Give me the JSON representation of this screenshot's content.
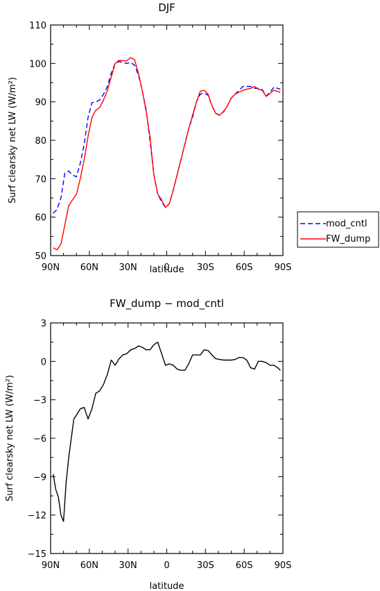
{
  "chart_data": [
    {
      "type": "line",
      "title": "DJF",
      "xlabel": "latitude",
      "ylabel": "Surf clearsky net LW (W/m²)",
      "xlim": [
        90,
        -90
      ],
      "ylim": [
        50,
        110
      ],
      "x_ticks": [
        90,
        60,
        30,
        0,
        -30,
        -60,
        -90
      ],
      "x_tick_labels": [
        "90N",
        "60N",
        "30N",
        "0",
        "30S",
        "60S",
        "90S"
      ],
      "y_ticks": [
        50,
        60,
        70,
        80,
        90,
        100,
        110
      ],
      "y_tick_labels": [
        "50",
        "60",
        "70",
        "80",
        "90",
        "100",
        "110"
      ],
      "legend": {
        "placement": "right"
      },
      "grid": false,
      "series": [
        {
          "name": "mod_cntl",
          "color": "#0000ff",
          "dash": "dashed",
          "x": [
            88,
            85,
            82,
            79,
            76,
            73,
            70,
            67,
            64,
            61,
            58,
            55,
            52,
            49,
            46,
            43,
            40,
            37,
            34,
            31,
            28,
            25,
            22,
            19,
            16,
            13,
            10,
            7,
            4,
            1,
            -2,
            -5,
            -8,
            -11,
            -14,
            -17,
            -20,
            -23,
            -26,
            -29,
            -32,
            -35,
            -38,
            -41,
            -44,
            -47,
            -50,
            -53,
            -56,
            -59,
            -62,
            -65,
            -68,
            -71,
            -74,
            -77,
            -80,
            -83,
            -86,
            -88
          ],
          "y": [
            61,
            62,
            65,
            71.5,
            72,
            71,
            70.5,
            74,
            79,
            86,
            89.8,
            90,
            90.5,
            92,
            94,
            97.5,
            100,
            100.5,
            100.2,
            100,
            100.3,
            99.5,
            97,
            93,
            88,
            80,
            71,
            66,
            64,
            62.5,
            63.5,
            67,
            71,
            75,
            79,
            83,
            86,
            90,
            92,
            92.3,
            91.7,
            89,
            87,
            86.5,
            87.5,
            89,
            91,
            92,
            93,
            94,
            94,
            94,
            93.5,
            93.5,
            93.2,
            91.5,
            92.5,
            93.8,
            93.5,
            93.3
          ]
        },
        {
          "name": "FW_dump",
          "color": "#ff0000",
          "dash": "solid",
          "x": [
            88,
            85,
            82,
            79,
            76,
            73,
            70,
            67,
            64,
            61,
            58,
            55,
            52,
            49,
            46,
            43,
            40,
            37,
            34,
            31,
            28,
            25,
            22,
            19,
            16,
            13,
            10,
            7,
            4,
            1,
            -2,
            -5,
            -8,
            -11,
            -14,
            -17,
            -20,
            -23,
            -26,
            -29,
            -32,
            -35,
            -38,
            -41,
            -44,
            -47,
            -50,
            -53,
            -56,
            -59,
            -62,
            -65,
            -68,
            -71,
            -74,
            -77,
            -80,
            -83,
            -86,
            -88
          ],
          "y": [
            52,
            51.5,
            53,
            58,
            63,
            64.5,
            66,
            70,
            75,
            81,
            86,
            87.8,
            88.5,
            90.5,
            93,
            96.5,
            100,
            100.8,
            100.7,
            100.7,
            101.5,
            101,
            97.5,
            93,
            87.5,
            81,
            71,
            66,
            64.5,
            62.5,
            63.5,
            67,
            71,
            75,
            79,
            83,
            86.5,
            90,
            92.8,
            93,
            92,
            89,
            87,
            86.6,
            87.4,
            89,
            91,
            92,
            92.5,
            93,
            93.3,
            93.5,
            94,
            93.3,
            93,
            91.4,
            92.2,
            93,
            92.7,
            92.5
          ]
        }
      ]
    },
    {
      "type": "line",
      "title": "FW_dump − mod_cntl",
      "xlabel": "latitude",
      "ylabel": "Surf clearsky net LW (W/m²)",
      "xlim": [
        90,
        -90
      ],
      "ylim": [
        -15,
        3
      ],
      "x_ticks": [
        90,
        60,
        30,
        0,
        -30,
        -60,
        -90
      ],
      "x_tick_labels": [
        "90N",
        "60N",
        "30N",
        "0",
        "30S",
        "60S",
        "90S"
      ],
      "y_ticks": [
        -15,
        -12,
        -9,
        -6,
        -3,
        0,
        3
      ],
      "y_tick_labels": [
        "−15",
        "−12",
        "−9",
        "−6",
        "−3",
        "0",
        "3"
      ],
      "grid": false,
      "series": [
        {
          "color": "#000000",
          "dash": "solid",
          "x": [
            88,
            86,
            84,
            82,
            80,
            78,
            76,
            74,
            72,
            70,
            67,
            64,
            61,
            58,
            55,
            52,
            49,
            46,
            43,
            40,
            37,
            34,
            31,
            28,
            25,
            22,
            19,
            16,
            13,
            10,
            7,
            4,
            1,
            -2,
            -5,
            -8,
            -11,
            -14,
            -17,
            -20,
            -23,
            -26,
            -29,
            -32,
            -35,
            -38,
            -41,
            -44,
            -47,
            -50,
            -53,
            -56,
            -59,
            -62,
            -65,
            -68,
            -71,
            -74,
            -77,
            -80,
            -83,
            -86,
            -88
          ],
          "y": [
            -8.8,
            -10,
            -10.6,
            -12,
            -12.5,
            -9.5,
            -7.5,
            -6,
            -4.5,
            -4.2,
            -3.7,
            -3.6,
            -4.5,
            -3.7,
            -2.5,
            -2.3,
            -1.8,
            -1,
            0.1,
            -0.3,
            0.2,
            0.5,
            0.6,
            0.9,
            1,
            1.2,
            1.1,
            0.9,
            0.9,
            1.3,
            1.5,
            0.6,
            -0.3,
            -0.2,
            -0.3,
            -0.6,
            -0.7,
            -0.7,
            -0.2,
            0.5,
            0.5,
            0.5,
            0.9,
            0.85,
            0.5,
            0.2,
            0.15,
            0.1,
            0.1,
            0.1,
            0.15,
            0.3,
            0.3,
            0.1,
            -0.5,
            -0.6,
            0,
            0,
            -0.1,
            -0.3,
            -0.3,
            -0.5,
            -0.7
          ]
        }
      ]
    }
  ]
}
